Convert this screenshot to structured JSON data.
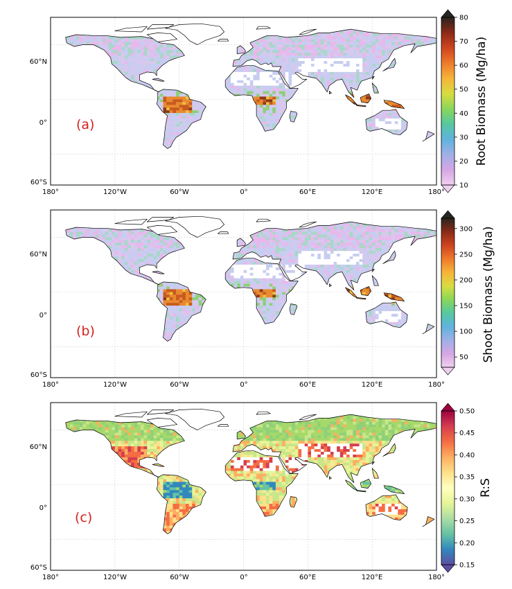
{
  "lon_ticks": [
    "180°",
    "120°W",
    "60°W",
    "0°",
    "60°E",
    "120°E",
    "180°"
  ],
  "lat_ticks": [
    "60°N",
    "0°",
    "60°S"
  ],
  "panels": [
    {
      "label": "(a)",
      "colorbar": {
        "label": "Root Biomass (Mg/ha)",
        "ticks": [
          "10",
          "20",
          "30",
          "40",
          "50",
          "60",
          "70",
          "80"
        ],
        "range": [
          10,
          80
        ],
        "colors": [
          "#f0d0f0",
          "#d6a6e4",
          "#9fb0e6",
          "#5fb3de",
          "#56c8a0",
          "#8bd65a",
          "#d8dc40",
          "#f6b43a",
          "#ee7a2a",
          "#cf4420",
          "#8a2a18",
          "#2a2420"
        ]
      },
      "map_palette": [
        "#c7cdf0",
        "#d8c8ee",
        "#e8b8ec",
        "#a8d7c8",
        "#8fcf7a",
        "#6fb8d8",
        "#f0c040",
        "#e88a30",
        "#c85a20",
        "#8a3a1a"
      ]
    },
    {
      "label": "(b)",
      "colorbar": {
        "label": "Shoot Biomass (Mg/ha)",
        "ticks": [
          "50",
          "100",
          "150",
          "200",
          "250",
          "300"
        ],
        "range": [
          30,
          320
        ],
        "colors": [
          "#f0d0f0",
          "#d6a6e4",
          "#9fb0e6",
          "#5fb3de",
          "#56c8a0",
          "#8bd65a",
          "#d8dc40",
          "#f6b43a",
          "#ee7a2a",
          "#cf4420",
          "#8a2a18",
          "#2a2420"
        ]
      },
      "map_palette": [
        "#c7cdf0",
        "#d8c8ee",
        "#e8b8ec",
        "#a8d7c8",
        "#8fcf7a",
        "#6fb8d8",
        "#f0c040",
        "#e88a30",
        "#c85a20",
        "#8a3a1a"
      ]
    },
    {
      "label": "(c)",
      "colorbar": {
        "label": "R:S",
        "ticks": [
          "0.15",
          "0.20",
          "0.25",
          "0.30",
          "0.35",
          "0.40",
          "0.45",
          "0.50"
        ],
        "range": [
          0.15,
          0.5
        ],
        "colors": [
          "#5e4fa2",
          "#3288bd",
          "#66c2a5",
          "#abdda4",
          "#e6f598",
          "#ffffbf",
          "#fee08b",
          "#fdae61",
          "#f46d43",
          "#d53e4f",
          "#9e0142"
        ]
      },
      "map_palette": [
        "#8fd07a",
        "#a6d96a",
        "#c8e68a",
        "#e6f598",
        "#fee08b",
        "#fdae61",
        "#f46d43",
        "#d53e4f",
        "#66c2a5",
        "#3288bd"
      ]
    }
  ]
}
